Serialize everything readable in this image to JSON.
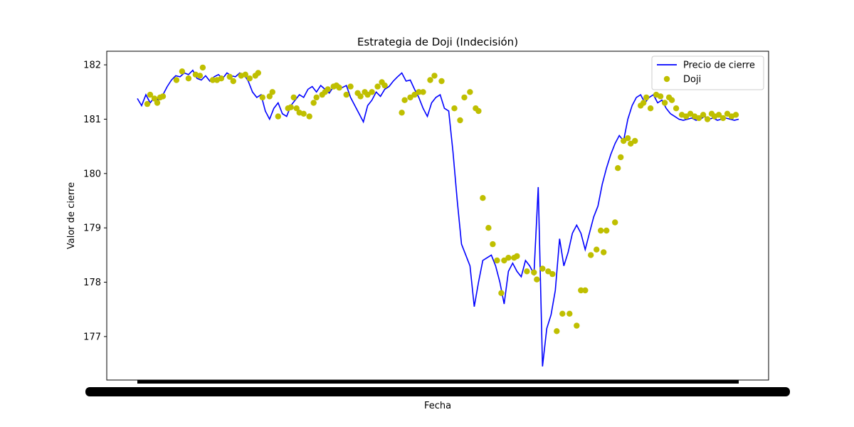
{
  "chart_data": {
    "type": "line",
    "title": "Estrategia de Doji (Indecisión)",
    "xlabel": "Fecha",
    "ylabel": "Valor de cierre",
    "ylim": [
      176.2,
      182.25
    ],
    "yticks": [
      177,
      178,
      179,
      180,
      181,
      182
    ],
    "legend_position": "top-right",
    "grid": false,
    "colors": {
      "line": "#0000ff",
      "doji": "#bfbf00"
    },
    "series": [
      {
        "name": "Precio de cierre",
        "kind": "line",
        "x": [
          0,
          6,
          12,
          18,
          24,
          30,
          36,
          42,
          48,
          54,
          60,
          66,
          72,
          78,
          84,
          90,
          96,
          102,
          108,
          114,
          120,
          126,
          132,
          138,
          144,
          150,
          156,
          162,
          168,
          174,
          180,
          186,
          192,
          198,
          204,
          210,
          216,
          222,
          228,
          234,
          240,
          246,
          252,
          258,
          264,
          270,
          276,
          282,
          288,
          294,
          300,
          306,
          312,
          318,
          324,
          330,
          336,
          342,
          348,
          354,
          360,
          366,
          372,
          378,
          384,
          390,
          396,
          402,
          408,
          414,
          420,
          426,
          432,
          438,
          444,
          450,
          456,
          462,
          468,
          474,
          480,
          486,
          492,
          498,
          504,
          510,
          516,
          522,
          528,
          534,
          540,
          546,
          552,
          558,
          564,
          570,
          576,
          582,
          588,
          594,
          600,
          606,
          612,
          618,
          624,
          630,
          636,
          642,
          648,
          654,
          660,
          666,
          672,
          678,
          684,
          690,
          696,
          702,
          708,
          714,
          720,
          726,
          732,
          738,
          744,
          750,
          756,
          762,
          768,
          774,
          780,
          786,
          792,
          798,
          804,
          810,
          816,
          822,
          828,
          834,
          840,
          846
        ],
        "y": [
          181.38,
          181.25,
          181.45,
          181.3,
          181.4,
          181.35,
          181.45,
          181.6,
          181.72,
          181.8,
          181.78,
          181.85,
          181.82,
          181.9,
          181.75,
          181.72,
          181.8,
          181.7,
          181.78,
          181.82,
          181.75,
          181.85,
          181.8,
          181.78,
          181.85,
          181.82,
          181.7,
          181.5,
          181.4,
          181.45,
          181.15,
          181.0,
          181.2,
          181.3,
          181.1,
          181.05,
          181.25,
          181.35,
          181.45,
          181.4,
          181.55,
          181.6,
          181.5,
          181.62,
          181.55,
          181.48,
          181.6,
          181.65,
          181.58,
          181.62,
          181.4,
          181.25,
          181.1,
          180.95,
          181.25,
          181.35,
          181.5,
          181.42,
          181.55,
          181.6,
          181.7,
          181.78,
          181.85,
          181.7,
          181.72,
          181.55,
          181.4,
          181.2,
          181.05,
          181.3,
          181.4,
          181.45,
          181.2,
          181.15,
          180.4,
          179.5,
          178.7,
          178.5,
          178.3,
          177.55,
          178.0,
          178.4,
          178.45,
          178.5,
          178.3,
          178.0,
          177.6,
          178.2,
          178.35,
          178.2,
          178.1,
          178.4,
          178.3,
          178.15,
          179.75,
          176.45,
          177.15,
          177.4,
          177.85,
          178.8,
          178.3,
          178.55,
          178.9,
          179.05,
          178.9,
          178.6,
          178.9,
          179.2,
          179.4,
          179.8,
          180.1,
          180.35,
          180.55,
          180.7,
          180.6,
          181.0,
          181.25,
          181.4,
          181.45,
          181.3,
          181.4,
          181.45,
          181.3,
          181.35,
          181.2,
          181.1,
          181.05,
          181.0,
          180.98,
          181.0,
          181.02,
          180.98,
          181.0,
          181.05,
          181.0,
          181.02,
          180.98,
          181.0,
          181.02,
          181.0,
          180.98,
          181.0
        ]
      },
      {
        "name": "Doji",
        "kind": "scatter",
        "x": [
          14,
          18,
          24,
          28,
          32,
          36,
          55,
          63,
          72,
          82,
          88,
          92,
          106,
          112,
          118,
          130,
          135,
          146,
          152,
          158,
          166,
          170,
          176,
          186,
          190,
          198,
          212,
          216,
          220,
          224,
          228,
          234,
          242,
          248,
          252,
          260,
          264,
          268,
          276,
          280,
          284,
          294,
          300,
          310,
          314,
          320,
          324,
          330,
          338,
          344,
          348,
          372,
          376,
          384,
          390,
          396,
          402,
          412,
          418,
          428,
          446,
          454,
          460,
          468,
          476,
          480,
          486,
          494,
          500,
          506,
          512,
          516,
          522,
          530,
          534,
          548,
          558,
          562,
          570,
          578,
          584,
          590,
          598,
          608,
          618,
          624,
          630,
          638,
          646,
          652,
          656,
          660,
          672,
          676,
          680,
          684,
          690,
          694,
          700,
          708,
          712,
          716,
          722,
          730,
          736,
          742,
          748,
          752,
          758,
          766,
          772,
          778,
          784,
          790,
          796,
          802,
          808,
          812,
          818,
          824,
          830,
          836,
          842
        ],
        "y": [
          181.28,
          181.45,
          181.38,
          181.3,
          181.4,
          181.42,
          181.72,
          181.88,
          181.75,
          181.82,
          181.8,
          181.95,
          181.72,
          181.72,
          181.75,
          181.78,
          181.7,
          181.8,
          181.82,
          181.75,
          181.8,
          181.85,
          181.4,
          181.42,
          181.5,
          181.05,
          181.2,
          181.22,
          181.4,
          181.2,
          181.12,
          181.1,
          181.05,
          181.3,
          181.4,
          181.45,
          181.5,
          181.55,
          181.6,
          181.62,
          181.58,
          181.45,
          181.6,
          181.48,
          181.42,
          181.5,
          181.45,
          181.5,
          181.6,
          181.68,
          181.62,
          181.12,
          181.35,
          181.4,
          181.45,
          181.5,
          181.5,
          181.72,
          181.8,
          181.7,
          181.2,
          180.98,
          181.4,
          181.5,
          181.2,
          181.15,
          179.55,
          179.0,
          178.7,
          178.4,
          177.8,
          178.4,
          178.45,
          178.45,
          178.48,
          178.2,
          178.18,
          178.05,
          178.25,
          178.2,
          178.15,
          177.1,
          177.42,
          177.42,
          177.2,
          177.85,
          177.85,
          178.5,
          178.6,
          178.95,
          178.55,
          178.95,
          179.1,
          180.1,
          180.3,
          180.6,
          180.65,
          180.55,
          180.6,
          181.25,
          181.3,
          181.4,
          181.2,
          181.45,
          181.42,
          181.3,
          181.4,
          181.35,
          181.2,
          181.08,
          181.05,
          181.1,
          181.05,
          181.02,
          181.08,
          181.0,
          181.1,
          181.05,
          181.08,
          181.02,
          181.1,
          181.05,
          181.08
        ]
      }
    ]
  }
}
